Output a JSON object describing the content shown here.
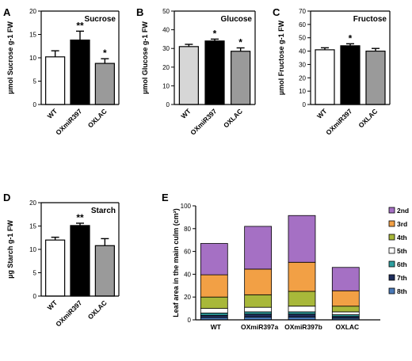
{
  "chart_data": [
    {
      "panel": "A",
      "type": "bar",
      "title": "Sucrose",
      "ylabel": "µmol Sucrose g-1 FW",
      "categories": [
        "WT",
        "OXmiR397",
        "OXLAC"
      ],
      "values": [
        10.2,
        13.8,
        8.8
      ],
      "errors": [
        1.3,
        1.9,
        1.0
      ],
      "significance": [
        "",
        "**",
        "*"
      ],
      "colors": [
        "#ffffff",
        "#000000",
        "#9a9a9a"
      ],
      "ylim": [
        0,
        20
      ],
      "yticks": [
        "0",
        "5",
        "10",
        "15",
        "20"
      ]
    },
    {
      "panel": "B",
      "type": "bar",
      "title": "Glucose",
      "ylabel": "µmol Glucose g-1 FW",
      "categories": [
        "WT",
        "OXmiR397",
        "OXLAC"
      ],
      "values": [
        31,
        34,
        28.5
      ],
      "errors": [
        1.2,
        1.0,
        1.8
      ],
      "significance": [
        "",
        "*",
        "*"
      ],
      "colors": [
        "#d6d6d6",
        "#000000",
        "#9a9a9a"
      ],
      "ylim": [
        0,
        50
      ],
      "yticks": [
        "0",
        "10",
        "20",
        "30",
        "40",
        "50"
      ]
    },
    {
      "panel": "C",
      "type": "bar",
      "title": "Fructose",
      "ylabel": "µmol Fructose g-1 FW",
      "categories": [
        "WT",
        "OXmiR397",
        "OXLAC"
      ],
      "values": [
        41,
        44,
        40
      ],
      "errors": [
        1.5,
        1.5,
        2.0
      ],
      "significance": [
        "",
        "*",
        ""
      ],
      "colors": [
        "#ffffff",
        "#000000",
        "#9a9a9a"
      ],
      "ylim": [
        0,
        70
      ],
      "yticks": [
        "0",
        "10",
        "20",
        "30",
        "40",
        "50",
        "60",
        "70"
      ]
    },
    {
      "panel": "D",
      "type": "bar",
      "title": "Starch",
      "ylabel": "µg Starch  g-1 FW",
      "categories": [
        "WT",
        "OXmiR397",
        "OXLAC"
      ],
      "values": [
        12,
        15.1,
        10.8
      ],
      "errors": [
        0.6,
        0.5,
        1.5
      ],
      "significance": [
        "",
        "**",
        ""
      ],
      "colors": [
        "#ffffff",
        "#000000",
        "#9a9a9a"
      ],
      "ylim": [
        0,
        20
      ],
      "yticks": [
        "0",
        "5",
        "10",
        "15",
        "20"
      ]
    },
    {
      "panel": "E",
      "type": "bar",
      "stacked": true,
      "ylabel": "Leaf area in the main culm (cm²)",
      "categories": [
        "WT",
        "OXmiR397a",
        "OXmiR397b",
        "OXLAC"
      ],
      "ylim": [
        0,
        100
      ],
      "yticks": [
        "0",
        "20",
        "40",
        "60",
        "80",
        "100"
      ],
      "legend_position": "right",
      "series": [
        {
          "name": "8th",
          "color": "#4a79b8",
          "values": [
            2,
            2.5,
            2.5,
            1.5
          ]
        },
        {
          "name": "7th",
          "color": "#1f2d5c",
          "values": [
            2,
            2.5,
            2.5,
            1.5
          ]
        },
        {
          "name": "6th",
          "color": "#2e9fa0",
          "values": [
            2,
            2,
            2,
            1.5
          ]
        },
        {
          "name": "5th",
          "color": "#ffffff",
          "values": [
            4,
            4,
            5,
            2.5
          ]
        },
        {
          "name": "4th",
          "color": "#a8b83a",
          "values": [
            10,
            11,
            13,
            5
          ]
        },
        {
          "name": "3rd",
          "color": "#f2a045",
          "values": [
            19.5,
            22.5,
            25.5,
            13.5
          ]
        },
        {
          "name": "2nd",
          "color": "#a570c4",
          "values": [
            27.5,
            37.5,
            41,
            20.5
          ]
        }
      ],
      "legend_labels": [
        "2nd",
        "3rd",
        "4th",
        "5th",
        "6th",
        "7th",
        "8th"
      ]
    }
  ]
}
